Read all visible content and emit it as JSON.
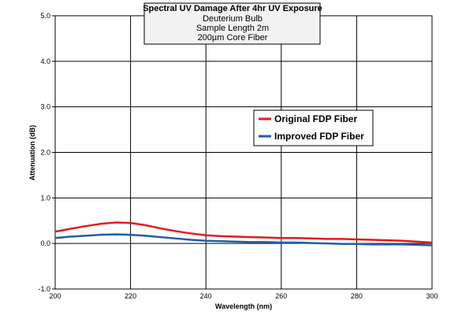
{
  "chart_data": {
    "type": "line",
    "title": "Spectral UV Damage After 4hr UV Exposure",
    "subtitle": [
      "Deuterium Bulb",
      "Sample Length 2m",
      "200µm Core Fiber"
    ],
    "xlabel": "Wavelength (nm)",
    "ylabel": "Attenuation  (dB)",
    "xlim": [
      200,
      300
    ],
    "ylim": [
      -1.0,
      5.0
    ],
    "x_ticks": [
      200,
      220,
      240,
      260,
      280,
      300
    ],
    "x_tick_labels": [
      "200",
      "220",
      "240",
      "260",
      "280",
      "300"
    ],
    "y_ticks": [
      -1.0,
      0.0,
      1.0,
      2.0,
      3.0,
      4.0,
      5.0
    ],
    "y_tick_labels": [
      "-1.0",
      "0.0",
      "1.0",
      "2.0",
      "3.0",
      "4.0",
      "5.0"
    ],
    "grid": true,
    "legend_position": "right-center",
    "series": [
      {
        "name": "Original FDP Fiber",
        "color": "#e31a1c",
        "x": [
          200,
          204,
          208,
          212,
          216,
          220,
          224,
          228,
          232,
          236,
          240,
          244,
          248,
          252,
          256,
          260,
          264,
          268,
          272,
          276,
          280,
          284,
          288,
          292,
          296,
          300
        ],
        "y": [
          0.26,
          0.32,
          0.38,
          0.43,
          0.46,
          0.45,
          0.4,
          0.33,
          0.27,
          0.22,
          0.18,
          0.16,
          0.15,
          0.14,
          0.13,
          0.12,
          0.12,
          0.11,
          0.1,
          0.1,
          0.09,
          0.08,
          0.07,
          0.06,
          0.04,
          0.02
        ]
      },
      {
        "name": "Improved FDP Fiber",
        "color": "#1f5fa6",
        "x": [
          200,
          204,
          208,
          212,
          216,
          220,
          224,
          228,
          232,
          236,
          240,
          244,
          248,
          252,
          256,
          260,
          264,
          268,
          272,
          276,
          280,
          284,
          288,
          292,
          296,
          300
        ],
        "y": [
          0.12,
          0.15,
          0.17,
          0.19,
          0.2,
          0.19,
          0.17,
          0.14,
          0.11,
          0.08,
          0.06,
          0.05,
          0.04,
          0.03,
          0.03,
          0.02,
          0.02,
          0.01,
          0.0,
          -0.01,
          -0.01,
          -0.02,
          -0.02,
          -0.02,
          -0.03,
          -0.04
        ]
      }
    ]
  }
}
